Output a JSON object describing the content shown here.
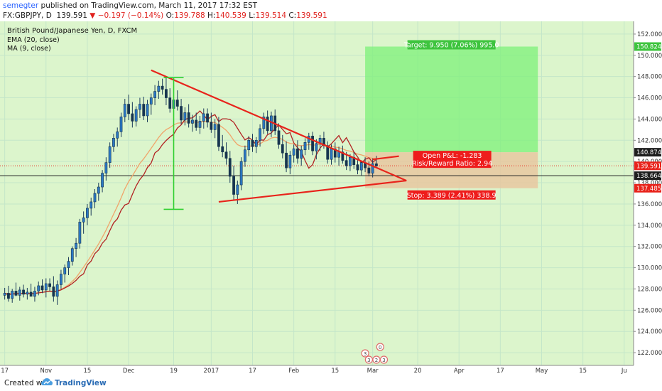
{
  "header": {
    "user": "semegter",
    "published_text": "published on TradingView.com, March 11, 2017 17:32 EST",
    "symbol": "FX:GBPJPY, D",
    "last": "139.591",
    "arrow": "▼",
    "change": "−0.197 (−0.14%)",
    "o": "O:",
    "o_val": "139.788",
    "h": "H:",
    "h_val": "140.539",
    "l": "L:",
    "l_val": "139.514",
    "c": "C:",
    "c_val": "139.591"
  },
  "footer": {
    "created": "Created with",
    "brand": "TradingView",
    "logo_icon": "tradingview-cloud-icon"
  },
  "colors": {
    "bg": "#dcf5cc",
    "up": "#1a5f9e",
    "down": "#1a5f9e",
    "ema": "#f0a46a",
    "ma": "#b22222",
    "trend": "#e8231b",
    "target": "#7df07a",
    "stop": "#e8c7a0",
    "redlabel": "#ee1c1c",
    "greenlabel": "#3ec43e"
  },
  "chart_data": {
    "type": "candlestick",
    "title": "British Pound/Japanese Yen, D, FXCM",
    "indicators": [
      "EMA (20, close)",
      "MA (9, close)"
    ],
    "ylim": [
      120.8,
      153.2
    ],
    "y_ticks": [
      122,
      124,
      126,
      128,
      130,
      132,
      134,
      136,
      138,
      140,
      142,
      144,
      146,
      148,
      150,
      152
    ],
    "y_tick_labels": [
      "122.000",
      "124.000",
      "126.000",
      "128.000",
      "130.000",
      "132.000",
      "134.000",
      "136.000",
      "138.000",
      "140.000",
      "142.000",
      "144.000",
      "146.000",
      "148.000",
      "150.000",
      "152.000"
    ],
    "x_ticks": [
      {
        "i": 0,
        "label": "17"
      },
      {
        "i": 11,
        "label": "Nov"
      },
      {
        "i": 22,
        "label": "15"
      },
      {
        "i": 33,
        "label": "Dec"
      },
      {
        "i": 45,
        "label": "19"
      },
      {
        "i": 55,
        "label": "2017"
      },
      {
        "i": 66,
        "label": "17"
      },
      {
        "i": 77,
        "label": "Feb"
      },
      {
        "i": 88,
        "label": "15"
      },
      {
        "i": 98,
        "label": "Mar"
      },
      {
        "i": 110,
        "label": "20"
      },
      {
        "i": 121,
        "label": "Apr"
      },
      {
        "i": 132,
        "label": "17"
      },
      {
        "i": 143,
        "label": "May"
      },
      {
        "i": 154,
        "label": "15"
      },
      {
        "i": 165,
        "label": "Ju"
      }
    ],
    "x_count": 168,
    "ohlc": [
      [
        127.4,
        128.1,
        127.0,
        127.6
      ],
      [
        127.6,
        128.3,
        126.8,
        127.1
      ],
      [
        127.1,
        128.0,
        126.7,
        127.8
      ],
      [
        127.8,
        128.6,
        127.3,
        127.4
      ],
      [
        127.4,
        128.2,
        126.9,
        127.9
      ],
      [
        127.9,
        128.4,
        127.2,
        127.5
      ],
      [
        127.5,
        128.1,
        127.0,
        127.7
      ],
      [
        127.7,
        128.5,
        127.3,
        127.3
      ],
      [
        127.3,
        128.2,
        126.8,
        127.8
      ],
      [
        127.8,
        128.7,
        127.4,
        128.3
      ],
      [
        128.3,
        128.9,
        127.6,
        127.9
      ],
      [
        127.9,
        129.0,
        127.2,
        128.5
      ],
      [
        128.5,
        129.0,
        127.8,
        128.2
      ],
      [
        128.2,
        129.2,
        126.8,
        127.3
      ],
      [
        127.3,
        128.8,
        126.5,
        128.4
      ],
      [
        128.4,
        129.8,
        128.0,
        129.4
      ],
      [
        129.4,
        130.3,
        128.6,
        130.0
      ],
      [
        130.0,
        131.0,
        129.3,
        130.6
      ],
      [
        130.6,
        132.0,
        130.2,
        131.8
      ],
      [
        131.8,
        132.8,
        131.0,
        132.3
      ],
      [
        132.3,
        134.6,
        131.8,
        134.3
      ],
      [
        134.3,
        135.3,
        133.2,
        134.7
      ],
      [
        134.7,
        136.0,
        134.0,
        135.6
      ],
      [
        135.6,
        136.6,
        134.9,
        136.2
      ],
      [
        136.2,
        137.4,
        135.6,
        137.0
      ],
      [
        137.0,
        138.0,
        136.3,
        137.6
      ],
      [
        137.6,
        139.2,
        137.1,
        138.9
      ],
      [
        138.9,
        140.4,
        138.2,
        139.9
      ],
      [
        139.9,
        141.8,
        139.4,
        141.4
      ],
      [
        141.4,
        142.6,
        140.9,
        142.2
      ],
      [
        142.2,
        143.2,
        141.4,
        142.8
      ],
      [
        142.8,
        144.6,
        142.3,
        144.2
      ],
      [
        144.2,
        145.9,
        143.7,
        145.4
      ],
      [
        145.4,
        146.3,
        143.9,
        144.5
      ],
      [
        144.5,
        145.6,
        143.2,
        143.8
      ],
      [
        143.8,
        145.2,
        143.3,
        144.9
      ],
      [
        144.9,
        146.0,
        144.1,
        145.4
      ],
      [
        145.4,
        146.1,
        143.9,
        144.3
      ],
      [
        144.3,
        145.8,
        143.7,
        145.4
      ],
      [
        145.4,
        146.4,
        144.4,
        146.0
      ],
      [
        146.0,
        147.2,
        145.3,
        146.6
      ],
      [
        146.6,
        147.6,
        145.9,
        147.1
      ],
      [
        147.1,
        147.8,
        146.3,
        146.8
      ],
      [
        146.8,
        148.0,
        145.3,
        146.0
      ],
      [
        146.0,
        146.9,
        144.6,
        145.0
      ],
      [
        145.0,
        146.3,
        144.3,
        145.8
      ],
      [
        145.8,
        146.7,
        144.8,
        145.2
      ],
      [
        145.2,
        145.9,
        143.5,
        143.9
      ],
      [
        143.9,
        145.1,
        143.4,
        144.6
      ],
      [
        144.6,
        145.4,
        143.2,
        143.6
      ],
      [
        143.6,
        144.4,
        142.8,
        143.9
      ],
      [
        143.9,
        144.6,
        142.9,
        143.2
      ],
      [
        143.2,
        144.3,
        142.6,
        143.8
      ],
      [
        143.8,
        145.0,
        143.1,
        144.5
      ],
      [
        144.5,
        145.0,
        143.2,
        143.7
      ],
      [
        143.7,
        144.6,
        142.7,
        143.0
      ],
      [
        143.0,
        144.0,
        142.2,
        143.5
      ],
      [
        143.5,
        144.2,
        141.0,
        141.4
      ],
      [
        141.4,
        142.5,
        140.4,
        140.9
      ],
      [
        140.9,
        141.8,
        139.7,
        140.3
      ],
      [
        140.3,
        141.0,
        138.0,
        138.6
      ],
      [
        138.6,
        139.6,
        136.3,
        136.9
      ],
      [
        136.9,
        138.2,
        136.0,
        137.8
      ],
      [
        137.8,
        140.4,
        137.3,
        140.0
      ],
      [
        140.0,
        141.5,
        139.5,
        141.1
      ],
      [
        141.1,
        142.4,
        140.5,
        142.0
      ],
      [
        142.0,
        142.6,
        140.9,
        141.4
      ],
      [
        141.4,
        142.3,
        140.8,
        142.0
      ],
      [
        142.0,
        143.5,
        141.4,
        143.1
      ],
      [
        143.1,
        144.6,
        142.6,
        144.2
      ],
      [
        144.2,
        144.8,
        142.6,
        142.9
      ],
      [
        142.9,
        144.7,
        142.3,
        144.3
      ],
      [
        144.3,
        144.9,
        142.5,
        142.9
      ],
      [
        142.9,
        143.6,
        141.2,
        141.6
      ],
      [
        141.6,
        142.5,
        140.3,
        140.8
      ],
      [
        140.8,
        141.9,
        139.0,
        139.4
      ],
      [
        139.4,
        141.0,
        138.8,
        140.6
      ],
      [
        140.6,
        141.6,
        139.9,
        141.2
      ],
      [
        141.2,
        142.0,
        139.8,
        140.3
      ],
      [
        140.3,
        141.5,
        139.6,
        141.1
      ],
      [
        141.1,
        142.2,
        140.6,
        141.8
      ],
      [
        141.8,
        142.7,
        141.1,
        142.4
      ],
      [
        142.4,
        142.8,
        140.6,
        141.0
      ],
      [
        141.0,
        142.1,
        140.2,
        141.7
      ],
      [
        141.7,
        142.5,
        141.0,
        142.2
      ],
      [
        142.2,
        142.8,
        141.2,
        141.5
      ],
      [
        141.5,
        141.9,
        139.8,
        140.2
      ],
      [
        140.2,
        141.6,
        139.7,
        141.2
      ],
      [
        141.2,
        141.8,
        139.9,
        140.4
      ],
      [
        140.4,
        141.4,
        139.6,
        140.9
      ],
      [
        140.9,
        141.5,
        139.8,
        140.1
      ],
      [
        140.1,
        140.9,
        139.2,
        139.6
      ],
      [
        139.6,
        140.7,
        139.1,
        140.4
      ],
      [
        140.4,
        140.9,
        139.3,
        139.7
      ],
      [
        139.7,
        140.3,
        138.8,
        139.2
      ],
      [
        139.2,
        140.1,
        138.7,
        139.9
      ],
      [
        139.9,
        140.4,
        139.0,
        139.4
      ],
      [
        139.4,
        140.0,
        138.6,
        138.9
      ],
      [
        138.9,
        140.3,
        138.5,
        139.8
      ],
      [
        139.788,
        140.539,
        139.514,
        139.591
      ]
    ],
    "trendlines": [
      {
        "name": "upper",
        "from": {
          "i": 39,
          "y": 148.6
        },
        "to": {
          "i": 107,
          "y": 138.2
        }
      },
      {
        "name": "lower",
        "from": {
          "i": 57,
          "y": 136.2
        },
        "to": {
          "i": 107,
          "y": 138.2
        }
      },
      {
        "name": "flag-end",
        "from": {
          "i": 98,
          "y": 140.2
        },
        "to": {
          "i": 105,
          "y": 140.5
        }
      }
    ],
    "measure_bar": {
      "i": 45,
      "top": 147.9,
      "bottom": 135.5
    },
    "position": {
      "entry": 139.591,
      "target": 150.824,
      "stop": 137.485,
      "upper_zone": 140.874,
      "from_i": 96,
      "to_i": 142,
      "target_label": "Target: 9.950 (7.06%) 995.0",
      "stop_label": "Stop: 3.389 (2.41%) 338.9",
      "pl_label_1": "Open P&L: -1.283",
      "pl_label_2": "Risk/Reward Ratio: 2.94"
    },
    "price_labels": [
      {
        "value": 150.824,
        "label": "150.824",
        "kind": "green"
      },
      {
        "value": 140.874,
        "label": "140.874",
        "kind": "dark"
      },
      {
        "value": 139.591,
        "label": "139.591",
        "kind": "red"
      },
      {
        "value": 138.664,
        "label": "138.664",
        "kind": "dark"
      },
      {
        "value": 137.485,
        "label": "137.485",
        "kind": "red"
      }
    ],
    "black_hline": 138.664,
    "event_icons": [
      {
        "i": 100,
        "label": "0",
        "level": 2
      },
      {
        "i": 96,
        "label": "3",
        "level": 1
      },
      {
        "i": 97,
        "label": "3",
        "level": 0
      },
      {
        "i": 99,
        "label": "2",
        "level": 0
      },
      {
        "i": 101,
        "label": "3",
        "level": 0
      }
    ]
  }
}
